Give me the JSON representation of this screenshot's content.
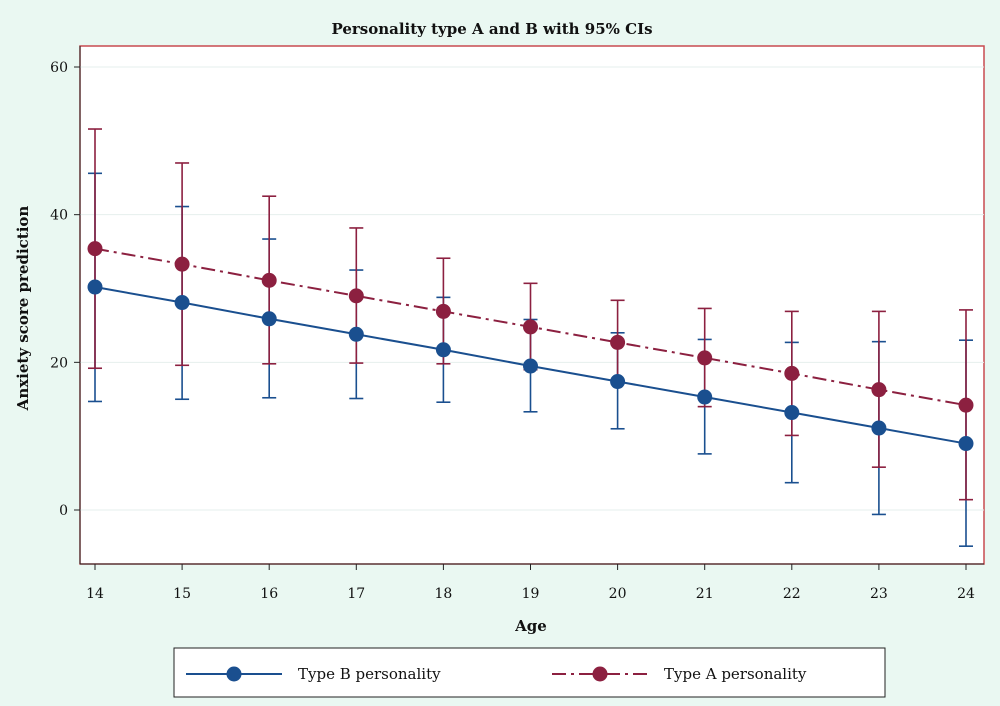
{
  "chart_data": {
    "type": "line",
    "title": "Personality type A and B with 95% CIs",
    "xlabel": "Age",
    "ylabel": "Anxiety score prediction",
    "x": [
      14,
      15,
      16,
      17,
      18,
      19,
      20,
      21,
      22,
      23,
      24
    ],
    "xlim": [
      14,
      24
    ],
    "ylim": [
      -7.5,
      62.5
    ],
    "yticks": [
      0,
      20,
      40,
      60
    ],
    "grid": true,
    "legend_position": "bottom",
    "series": [
      {
        "name": "Type B personality",
        "color": "#1a4f8f",
        "line_style": "solid",
        "values": [
          30.2,
          28.1,
          25.9,
          23.8,
          21.7,
          19.5,
          17.4,
          15.3,
          13.2,
          11.1,
          9.0
        ],
        "ci_lower": [
          14.7,
          15.0,
          15.2,
          15.1,
          14.6,
          13.3,
          11.0,
          7.6,
          3.7,
          -0.6,
          -4.9
        ],
        "ci_upper": [
          45.6,
          41.1,
          36.7,
          32.5,
          28.8,
          25.8,
          24.0,
          23.1,
          22.7,
          22.8,
          23.0
        ]
      },
      {
        "name": "Type A personality",
        "color": "#8c2040",
        "line_style": "dashdot",
        "values": [
          35.4,
          33.3,
          31.1,
          29.0,
          26.9,
          24.8,
          22.7,
          20.6,
          18.5,
          16.3,
          14.2
        ],
        "ci_lower": [
          19.2,
          19.6,
          19.8,
          19.9,
          19.8,
          19.0,
          17.2,
          14.0,
          10.1,
          5.8,
          1.4
        ],
        "ci_upper": [
          51.6,
          47.0,
          42.5,
          38.2,
          34.1,
          30.7,
          28.4,
          27.3,
          26.9,
          26.9,
          27.1
        ]
      }
    ]
  }
}
